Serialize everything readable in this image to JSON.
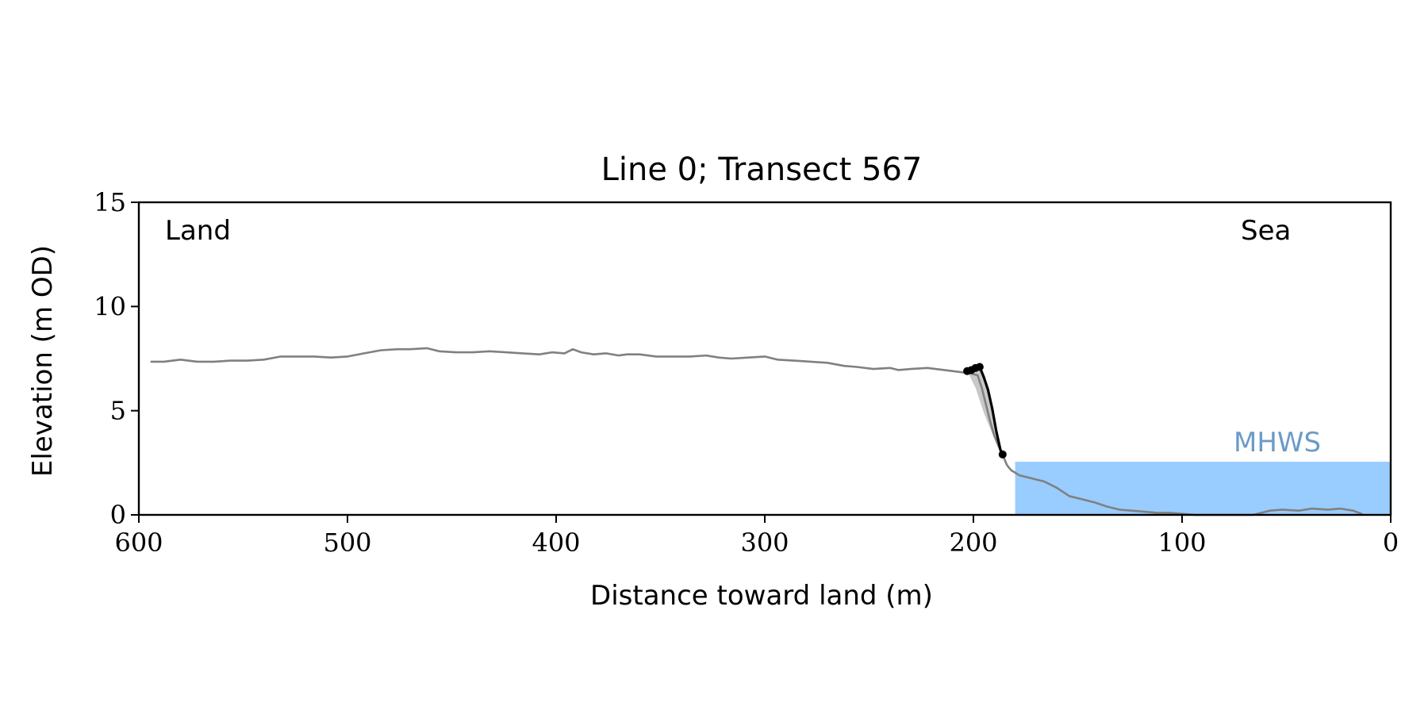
{
  "chart_data": {
    "type": "line",
    "title": "Line 0; Transect 567",
    "xlabel": "Distance toward land (m)",
    "ylabel": "Elevation (m OD)",
    "xlim": [
      600,
      0
    ],
    "ylim": [
      0,
      15
    ],
    "x_reversed": true,
    "grid": false,
    "xticks": [
      600,
      500,
      400,
      300,
      200,
      100,
      0
    ],
    "yticks": [
      0,
      5,
      10,
      15
    ],
    "annotations": {
      "land": "Land",
      "sea": "Sea",
      "mhws": "MHWS"
    },
    "mhws": {
      "label": "MHWS",
      "elevation": 2.55,
      "x_start": 180,
      "x_end": 0,
      "color": "#99ccff",
      "label_color": "#6b9bc8"
    },
    "series": [
      {
        "role": "profile",
        "color": "#808080",
        "x": [
          594,
          588,
          580,
          572,
          564,
          556,
          548,
          540,
          532,
          524,
          516,
          508,
          500,
          492,
          484,
          476,
          470,
          462,
          456,
          448,
          440,
          432,
          424,
          416,
          408,
          402,
          396,
          392,
          388,
          382,
          376,
          370,
          366,
          360,
          352,
          344,
          336,
          328,
          322,
          316,
          308,
          300,
          294,
          286,
          278,
          270,
          262,
          256,
          248,
          240,
          236,
          230,
          222,
          214,
          206,
          202,
          198,
          196,
          194,
          192,
          190,
          188,
          186,
          184,
          182,
          178,
          172,
          166,
          160,
          154,
          148,
          142,
          136,
          130,
          124,
          118,
          112,
          106,
          100,
          94,
          88,
          80,
          72,
          66,
          58,
          52,
          44,
          38,
          30,
          24,
          18,
          14
        ],
        "y": [
          7.35,
          7.35,
          7.45,
          7.35,
          7.35,
          7.4,
          7.4,
          7.45,
          7.6,
          7.6,
          7.6,
          7.55,
          7.6,
          7.75,
          7.9,
          7.95,
          7.95,
          8.0,
          7.85,
          7.8,
          7.8,
          7.85,
          7.8,
          7.75,
          7.7,
          7.8,
          7.75,
          7.95,
          7.8,
          7.7,
          7.75,
          7.65,
          7.7,
          7.7,
          7.6,
          7.6,
          7.6,
          7.65,
          7.55,
          7.5,
          7.55,
          7.6,
          7.45,
          7.4,
          7.35,
          7.3,
          7.15,
          7.1,
          7.0,
          7.05,
          6.95,
          7.0,
          7.05,
          6.95,
          6.85,
          6.8,
          6.7,
          6.1,
          5.3,
          4.5,
          3.8,
          3.3,
          2.9,
          2.4,
          2.15,
          1.9,
          1.75,
          1.6,
          1.3,
          0.9,
          0.75,
          0.6,
          0.4,
          0.25,
          0.2,
          0.15,
          0.1,
          0.1,
          0.05,
          0.0,
          0.0,
          0.0,
          0.0,
          0.0,
          0.2,
          0.25,
          0.2,
          0.3,
          0.25,
          0.3,
          0.2,
          0.05
        ]
      },
      {
        "role": "cliff",
        "color": "#000000",
        "x": [
          203,
          201,
          199,
          197,
          195,
          193,
          191,
          189,
          187,
          185
        ],
        "y": [
          6.9,
          7.0,
          7.05,
          7.1,
          6.6,
          6.0,
          5.1,
          4.0,
          3.1,
          2.9
        ]
      }
    ],
    "markers": [
      {
        "x": 203,
        "y": 6.9
      },
      {
        "x": 201,
        "y": 6.95
      },
      {
        "x": 199,
        "y": 7.05
      },
      {
        "x": 197,
        "y": 7.1
      },
      {
        "x": 186,
        "y": 2.9
      }
    ],
    "shaded_region": {
      "color": "#c8c8c8",
      "x": [
        203,
        199,
        197,
        195,
        193,
        191,
        189,
        187,
        186
      ],
      "y_top": [
        6.9,
        7.05,
        7.1,
        6.6,
        6.0,
        5.1,
        4.0,
        3.1,
        2.9
      ],
      "y_bottom": [
        6.9,
        6.1,
        5.5,
        4.9,
        4.4,
        3.9,
        3.5,
        3.1,
        2.9
      ]
    }
  }
}
